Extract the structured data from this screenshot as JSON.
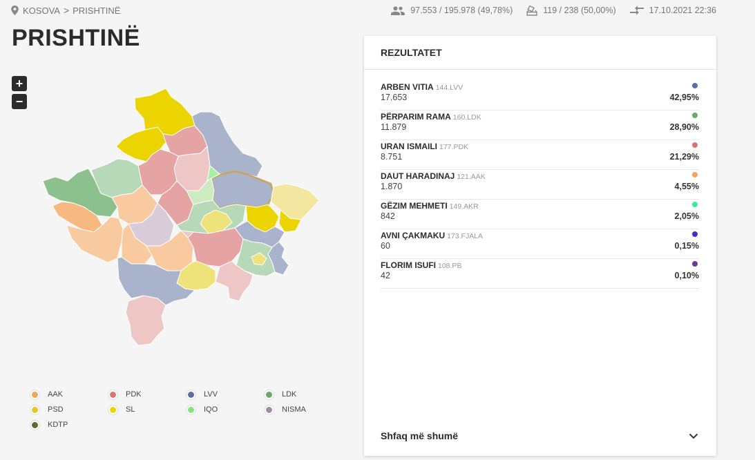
{
  "breadcrumb": {
    "country": "KOSOVA",
    "separator": ">",
    "municipality": "PRISHTINË"
  },
  "stats": {
    "voters": "97.553 / 195.978 (49,78%)",
    "stations": "119 / 238 (50,00%)",
    "updated": "17.10.2021 22:36"
  },
  "page_title": "PRISHTINË",
  "map": {
    "zoom_in": "+",
    "zoom_out": "−"
  },
  "legend": [
    {
      "label": "AAK",
      "color": "#f2a45c"
    },
    {
      "label": "PDK",
      "color": "#d9756e"
    },
    {
      "label": "LVV",
      "color": "#5b6fa3"
    },
    {
      "label": "LDK",
      "color": "#6aaa6a"
    },
    {
      "label": "PSD",
      "color": "#e8c81f"
    },
    {
      "label": "SL",
      "color": "#ecd400"
    },
    {
      "label": "IQO",
      "color": "#85e37a"
    },
    {
      "label": "NISMA",
      "color": "#a38aaa"
    },
    {
      "label": "KDTP",
      "color": "#5a6b33"
    }
  ],
  "results": {
    "header": "REZULTATET",
    "candidates": [
      {
        "name": "ARBEN VITIA",
        "code": "144.LVV",
        "votes": "17.653",
        "percent": "42,95%",
        "color": "#5b6fa3"
      },
      {
        "name": "PËRPARIM RAMA",
        "code": "160.LDK",
        "votes": "11.879",
        "percent": "28,90%",
        "color": "#6aaa6a"
      },
      {
        "name": "URAN ISMAILI",
        "code": "177.PDK",
        "votes": "8.751",
        "percent": "21,29%",
        "color": "#d9756e"
      },
      {
        "name": "DAUT HARADINAJ",
        "code": "121.AAK",
        "votes": "1.870",
        "percent": "4,55%",
        "color": "#f2a45c"
      },
      {
        "name": "GËZIM MEHMETI",
        "code": "149.AKR",
        "votes": "842",
        "percent": "2,05%",
        "color": "#3ee89a"
      },
      {
        "name": "AVNI ÇAKMAKU",
        "code": "173.FJALA",
        "votes": "60",
        "percent": "0,15%",
        "color": "#3a33c9"
      },
      {
        "name": "FLORIM ISUFI",
        "code": "108.PB",
        "votes": "42",
        "percent": "0,10%",
        "color": "#6a3a8e"
      }
    ],
    "show_more": "Shfaq më shumë"
  }
}
